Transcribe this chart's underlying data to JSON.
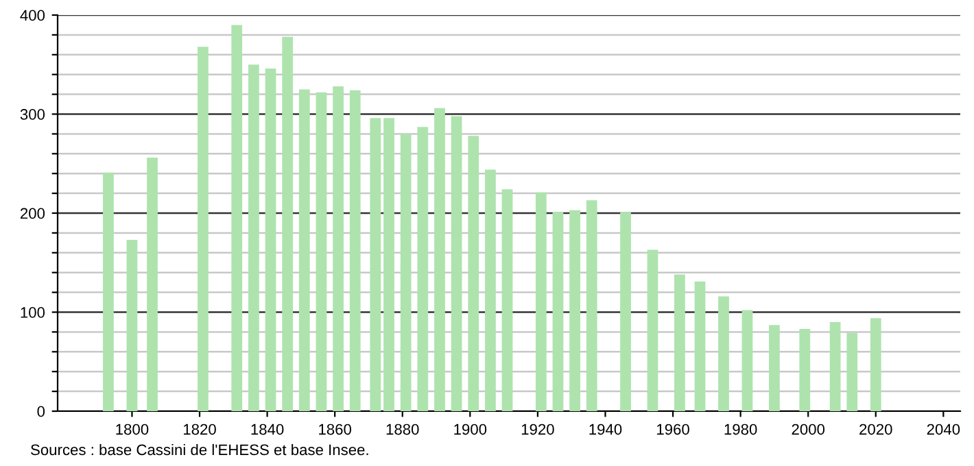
{
  "chart_data": {
    "type": "bar",
    "color": "#aee3ae",
    "x": [
      1793,
      1800,
      1806,
      1821,
      1831,
      1836,
      1841,
      1846,
      1851,
      1856,
      1861,
      1866,
      1872,
      1876,
      1881,
      1886,
      1891,
      1896,
      1901,
      1906,
      1911,
      1921,
      1926,
      1931,
      1936,
      1946,
      1954,
      1962,
      1968,
      1975,
      1982,
      1990,
      1999,
      2008,
      2013,
      2020
    ],
    "values": [
      241,
      173,
      256,
      368,
      390,
      350,
      346,
      378,
      325,
      322,
      328,
      324,
      296,
      296,
      280,
      287,
      306,
      298,
      278,
      244,
      224,
      221,
      201,
      203,
      213,
      201,
      163,
      138,
      131,
      116,
      102,
      87,
      83,
      90,
      79,
      94
    ],
    "xlim": [
      1778,
      2045
    ],
    "xticks": [
      1800,
      1820,
      1840,
      1860,
      1880,
      1900,
      1920,
      1940,
      1960,
      1980,
      2000,
      2020,
      2040
    ],
    "ylim": [
      0,
      400
    ],
    "yticks": [
      0,
      {
        "value": 20,
        "label": null
      },
      {
        "value": 40,
        "label": null
      },
      {
        "value": 60,
        "label": null
      },
      {
        "value": 80,
        "label": null
      },
      100,
      {
        "value": 120,
        "label": null
      },
      {
        "value": 140,
        "label": null
      },
      {
        "value": 160,
        "label": null
      },
      {
        "value": 180,
        "label": null
      },
      200,
      {
        "value": 220,
        "label": null
      },
      {
        "value": 240,
        "label": null
      },
      {
        "value": 260,
        "label": null
      },
      {
        "value": 280,
        "label": null
      },
      300,
      {
        "value": 320,
        "label": null
      },
      {
        "value": 340,
        "label": null
      },
      {
        "value": 360,
        "label": null
      },
      {
        "value": 380,
        "label": null
      },
      400
    ],
    "grid": "y",
    "annotations": [
      "Sources : base Cassini de l'EHESS et base Insee."
    ]
  }
}
